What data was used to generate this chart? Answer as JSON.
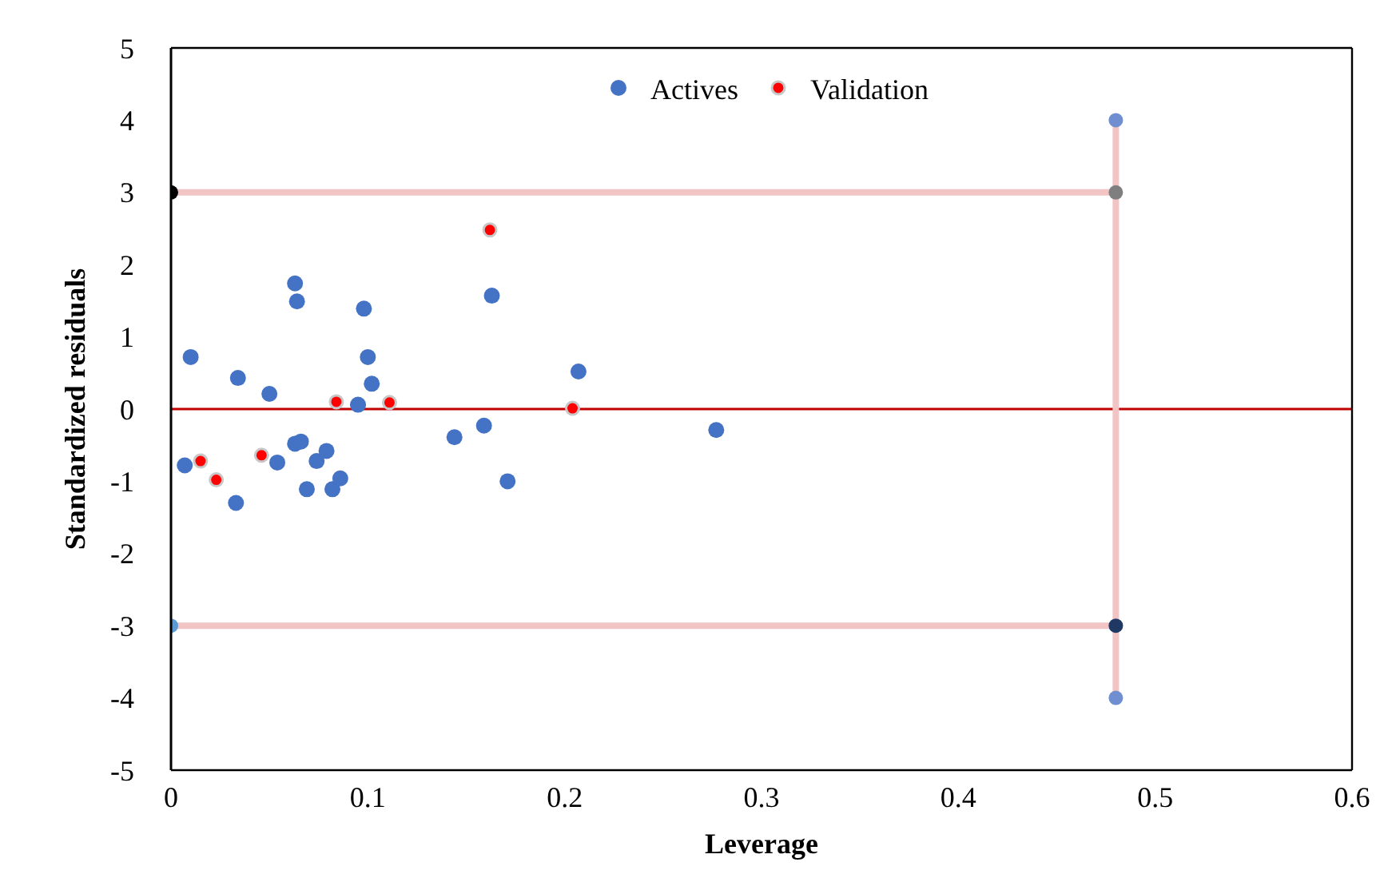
{
  "chart_data": {
    "type": "scatter",
    "xlabel": "Leverage",
    "ylabel": "Standardized residuals",
    "xlim": [
      0,
      0.6
    ],
    "xticks": [
      0,
      0.1,
      0.2,
      0.3,
      0.4,
      0.5,
      0.6
    ],
    "ylim": [
      -5,
      5
    ],
    "yticks": [
      -5,
      -4,
      -3,
      -2,
      -1,
      0,
      1,
      2,
      3,
      4,
      5
    ],
    "grid": false,
    "legend": "top",
    "marker": "circle",
    "series": [
      {
        "name": "Actives",
        "color": "#4472c4",
        "x": [
          0.01,
          0.063,
          0.064,
          0.098,
          0.034,
          0.05,
          0.1,
          0.102,
          0.095,
          0.007,
          0.033,
          0.054,
          0.063,
          0.066,
          0.074,
          0.079,
          0.069,
          0.082,
          0.086,
          0.163,
          0.207,
          0.144,
          0.159,
          0.171,
          0.277
        ],
        "values": [
          0.72,
          1.74,
          1.49,
          1.39,
          0.43,
          0.21,
          0.72,
          0.35,
          0.06,
          -0.78,
          -1.3,
          -0.74,
          -0.48,
          -0.45,
          -0.72,
          -0.58,
          -1.11,
          -1.11,
          -0.96,
          1.57,
          0.52,
          -0.39,
          -0.23,
          -1.0,
          -0.29
        ]
      },
      {
        "name": "Validation",
        "color": "#ff0000",
        "x": [
          0.015,
          0.023,
          0.046,
          0.084,
          0.111,
          0.162,
          0.204
        ],
        "values": [
          -0.72,
          -0.98,
          -0.64,
          0.1,
          0.09,
          2.48,
          0.01
        ]
      },
      {
        "type": "line",
        "color": "#f2c4c4",
        "x": [
          0,
          0.48
        ],
        "values": [
          3,
          3
        ],
        "colors": [
          "#000000",
          "#7f7f7f"
        ]
      },
      {
        "type": "line",
        "color": "#f2c4c4",
        "x": [
          0,
          0.48
        ],
        "values": [
          -3,
          -3
        ],
        "colors": [
          "#5b9bd5",
          "#203864"
        ]
      },
      {
        "type": "line",
        "color": "#f2c4c4",
        "x": [
          0.48,
          0.48
        ],
        "values": [
          4,
          -4
        ],
        "colors": [
          "#6f8fd0",
          "#6f8fd0"
        ]
      }
    ],
    "ref_lines": [
      {
        "axis": "y",
        "value": 0,
        "color": "#c00000"
      }
    ]
  }
}
